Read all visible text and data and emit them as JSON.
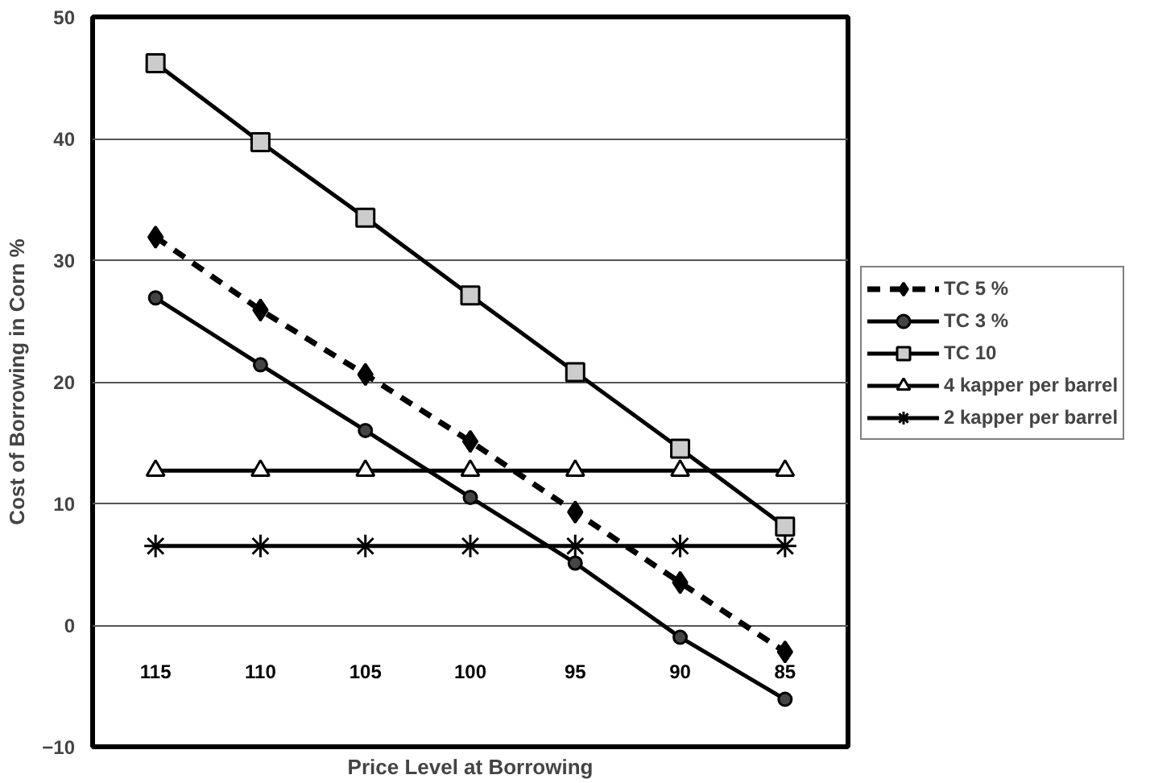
{
  "chart_data": {
    "type": "line",
    "xlabel": "Price Level at Borrowing",
    "ylabel": "Cost of Borrowing in Corn %",
    "categories": [
      "115",
      "110",
      "105",
      "100",
      "95",
      "90",
      "85"
    ],
    "ylim": [
      -10,
      50
    ],
    "yticks": [
      -10,
      0,
      10,
      20,
      30,
      40,
      50
    ],
    "grid": "y",
    "legend": "right",
    "series": [
      {
        "name": "TC 5 %",
        "color": "#000000",
        "marker": "diamond",
        "line_style": "dashed",
        "values": [
          31.9,
          25.9,
          20.6,
          15.1,
          9.3,
          3.5,
          -2.2
        ]
      },
      {
        "name": "TC 3 %",
        "color": "#000000",
        "marker": "circle",
        "line_style": "solid",
        "values": [
          26.9,
          21.4,
          16.0,
          10.5,
          5.1,
          -1.0,
          -6.1
        ]
      },
      {
        "name": "TC 10",
        "color": "#000000",
        "marker": "square",
        "line_style": "solid",
        "values": [
          46.2,
          39.7,
          33.5,
          27.1,
          20.8,
          14.5,
          8.1
        ]
      },
      {
        "name": "4 kapper per barrel",
        "color": "#000000",
        "marker": "triangle",
        "line_style": "solid",
        "values": [
          12.7,
          12.7,
          12.7,
          12.7,
          12.7,
          12.7,
          12.7
        ]
      },
      {
        "name": "2 kapper per barrel",
        "color": "#000000",
        "marker": "cross",
        "line_style": "solid",
        "values": [
          6.5,
          6.5,
          6.5,
          6.5,
          6.5,
          6.5,
          6.5
        ]
      }
    ]
  }
}
